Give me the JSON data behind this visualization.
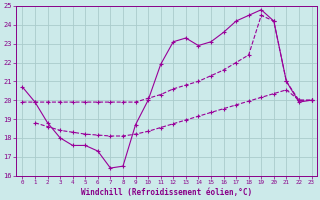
{
  "background_color": "#cceaea",
  "grid_color": "#aacccc",
  "line_color": "#990099",
  "xlabel": "Windchill (Refroidissement éolien,°C)",
  "xlabel_color": "#880088",
  "tick_color": "#880088",
  "xlim": [
    -0.5,
    23.4
  ],
  "ylim": [
    16,
    25
  ],
  "yticks": [
    16,
    17,
    18,
    19,
    20,
    21,
    22,
    23,
    24,
    25
  ],
  "xticks": [
    0,
    1,
    2,
    3,
    4,
    5,
    6,
    7,
    8,
    9,
    10,
    11,
    12,
    13,
    14,
    15,
    16,
    17,
    18,
    19,
    20,
    21,
    22,
    23
  ],
  "line1_x": [
    0,
    1,
    2,
    3,
    4,
    5,
    6,
    7,
    8,
    9,
    10,
    11,
    12,
    13,
    14,
    15,
    16,
    17,
    18,
    19,
    20,
    21,
    22,
    23
  ],
  "line1_y": [
    20.7,
    19.9,
    18.8,
    18.0,
    17.6,
    17.6,
    17.3,
    16.4,
    16.5,
    18.7,
    20.0,
    21.9,
    23.1,
    23.3,
    22.9,
    23.1,
    23.6,
    24.2,
    24.5,
    24.8,
    24.2,
    21.0,
    19.9,
    20.0
  ],
  "line2_x": [
    0,
    1,
    2,
    3,
    4,
    5,
    6,
    7,
    8,
    9,
    10,
    11,
    12,
    13,
    14,
    15,
    16,
    17,
    18,
    19,
    20,
    21,
    22,
    23
  ],
  "line2_y": [
    19.9,
    19.9,
    19.9,
    19.9,
    19.9,
    19.9,
    19.9,
    19.9,
    19.9,
    19.9,
    20.1,
    20.3,
    20.6,
    20.8,
    21.0,
    21.3,
    21.6,
    22.0,
    22.4,
    24.5,
    24.2,
    21.0,
    20.0,
    20.0
  ],
  "line3_x": [
    1,
    2,
    3,
    4,
    5,
    6,
    7,
    8,
    9,
    10,
    11,
    12,
    13,
    14,
    15,
    16,
    17,
    18,
    19,
    20,
    21,
    22,
    23
  ],
  "line3_y": [
    18.8,
    18.6,
    18.4,
    18.3,
    18.2,
    18.15,
    18.1,
    18.1,
    18.2,
    18.35,
    18.55,
    18.75,
    18.95,
    19.15,
    19.35,
    19.55,
    19.75,
    19.95,
    20.15,
    20.35,
    20.55,
    20.0,
    20.0
  ]
}
